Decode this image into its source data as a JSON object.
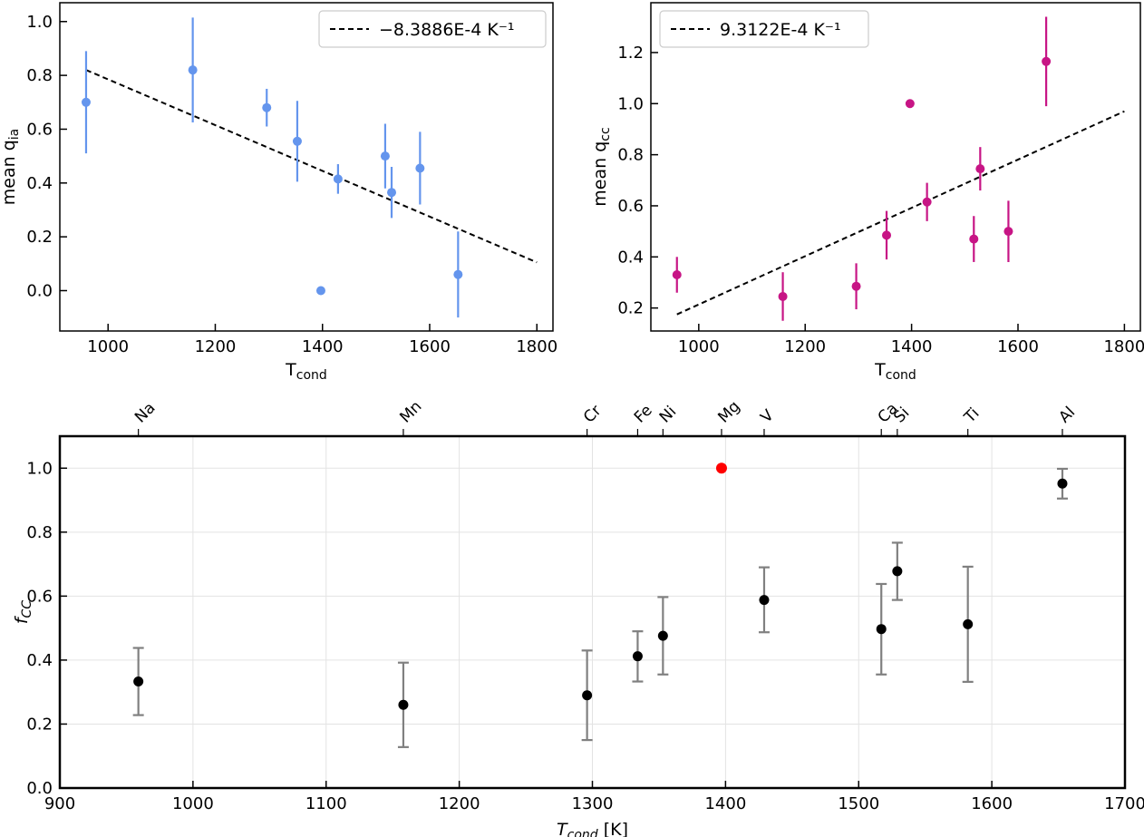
{
  "chart_data": [
    {
      "type": "scatter",
      "id": "qia",
      "xlabel_main": "T",
      "xlabel_sub": "cond",
      "ylabel_main": "mean q",
      "ylabel_sub": "ia",
      "xlim": [
        910,
        1830
      ],
      "ylim": [
        -0.15,
        1.07
      ],
      "xticks": [
        1000,
        1200,
        1400,
        1600,
        1800
      ],
      "yticks": [
        0.0,
        0.2,
        0.4,
        0.6,
        0.8,
        1.0
      ],
      "ytick_labels": [
        "0.0",
        "0.2",
        "0.4",
        "0.6",
        "0.8",
        "1.0"
      ],
      "color": "#6495ED",
      "points": [
        {
          "x": 959,
          "y": 0.7,
          "err": 0.19
        },
        {
          "x": 1158,
          "y": 0.82,
          "err": 0.195
        },
        {
          "x": 1296,
          "y": 0.68,
          "err": 0.07
        },
        {
          "x": 1353,
          "y": 0.555,
          "err": 0.15
        },
        {
          "x": 1397,
          "y": 0.0,
          "err": 0
        },
        {
          "x": 1429,
          "y": 0.415,
          "err": 0.055
        },
        {
          "x": 1517,
          "y": 0.5,
          "err": 0.12
        },
        {
          "x": 1529,
          "y": 0.365,
          "err": 0.095
        },
        {
          "x": 1582,
          "y": 0.455,
          "err": 0.135
        },
        {
          "x": 1653,
          "y": 0.06,
          "err": 0.16
        }
      ],
      "fit": {
        "x": [
          959,
          1800
        ],
        "y": [
          0.82,
          0.105
        ]
      },
      "legend": "−8.3886E-4 K⁻¹",
      "legend_position": "upper right"
    },
    {
      "type": "scatter",
      "id": "qcc",
      "xlabel_main": "T",
      "xlabel_sub": "cond",
      "ylabel_main": "mean q",
      "ylabel_sub": "cc",
      "xlim": [
        910,
        1830
      ],
      "ylim": [
        0.11,
        1.395
      ],
      "xticks": [
        1000,
        1200,
        1400,
        1600,
        1800
      ],
      "yticks": [
        0.2,
        0.4,
        0.6,
        0.8,
        1.0,
        1.2
      ],
      "ytick_labels": [
        "0.2",
        "0.4",
        "0.6",
        "0.8",
        "1.0",
        "1.2"
      ],
      "color": "#C71585",
      "points": [
        {
          "x": 959,
          "y": 0.33,
          "err": 0.07
        },
        {
          "x": 1158,
          "y": 0.245,
          "err": 0.095
        },
        {
          "x": 1296,
          "y": 0.285,
          "err": 0.09
        },
        {
          "x": 1353,
          "y": 0.485,
          "err": 0.095
        },
        {
          "x": 1397,
          "y": 1.0,
          "err": 0
        },
        {
          "x": 1429,
          "y": 0.615,
          "err": 0.075
        },
        {
          "x": 1517,
          "y": 0.47,
          "err": 0.09
        },
        {
          "x": 1529,
          "y": 0.745,
          "err": 0.085
        },
        {
          "x": 1582,
          "y": 0.5,
          "err": 0.12
        },
        {
          "x": 1653,
          "y": 1.165,
          "err": 0.175
        }
      ],
      "fit": {
        "x": [
          959,
          1800
        ],
        "y": [
          0.175,
          0.97
        ]
      },
      "legend": "9.3122E-4 K⁻¹",
      "legend_position": "upper left"
    },
    {
      "type": "scatter",
      "id": "fcc",
      "xlabel_main": "T",
      "xlabel_sub": "cond",
      "xlabel_unit": " [K]",
      "ylabel_main": "f",
      "ylabel_sub": "CC",
      "xlim": [
        900,
        1700
      ],
      "ylim": [
        0.0,
        1.1
      ],
      "xticks": [
        900,
        1000,
        1100,
        1200,
        1300,
        1400,
        1500,
        1600,
        1700
      ],
      "yticks": [
        0.0,
        0.2,
        0.4,
        0.6,
        0.8,
        1.0
      ],
      "ytick_labels": [
        "0.0",
        "0.2",
        "0.4",
        "0.6",
        "0.8",
        "1.0"
      ],
      "grid": true,
      "points": [
        {
          "element": "Na",
          "x": 959,
          "y": 0.333,
          "lo": 0.228,
          "hi": 0.438
        },
        {
          "element": "Mn",
          "x": 1158,
          "y": 0.26,
          "lo": 0.128,
          "hi": 0.392
        },
        {
          "element": "Cr",
          "x": 1296,
          "y": 0.29,
          "lo": 0.15,
          "hi": 0.43
        },
        {
          "element": "Fe",
          "x": 1334,
          "y": 0.412,
          "lo": 0.333,
          "hi": 0.49
        },
        {
          "element": "Ni",
          "x": 1353,
          "y": 0.476,
          "lo": 0.355,
          "hi": 0.597
        },
        {
          "element": "Mg",
          "x": 1397,
          "y": 1.0,
          "lo": 1.0,
          "hi": 1.0,
          "highlight": true
        },
        {
          "element": "V",
          "x": 1429,
          "y": 0.588,
          "lo": 0.487,
          "hi": 0.69
        },
        {
          "element": "Ca",
          "x": 1517,
          "y": 0.497,
          "lo": 0.355,
          "hi": 0.638
        },
        {
          "element": "Si",
          "x": 1529,
          "y": 0.678,
          "lo": 0.588,
          "hi": 0.767
        },
        {
          "element": "Ti",
          "x": 1582,
          "y": 0.512,
          "lo": 0.332,
          "hi": 0.692
        },
        {
          "element": "Al",
          "x": 1653,
          "y": 0.952,
          "lo": 0.905,
          "hi": 0.998
        }
      ],
      "marker_color": "#000000",
      "highlight_color": "#FF0000",
      "errorbar_color": "#808080"
    }
  ]
}
